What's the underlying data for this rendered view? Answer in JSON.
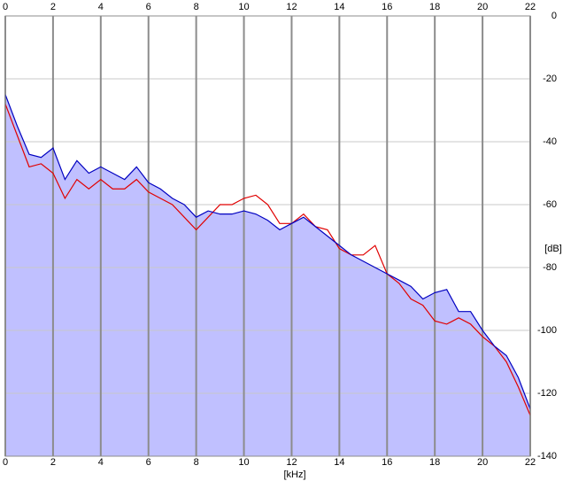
{
  "chart_data": {
    "type": "line",
    "x_label": "[kHz]",
    "y_label": "[dB]",
    "x": [
      0,
      0.5,
      1,
      1.5,
      2,
      2.5,
      3,
      3.5,
      4,
      4.5,
      5,
      5.5,
      6,
      6.5,
      7,
      7.5,
      8,
      8.5,
      9,
      9.5,
      10,
      10.5,
      11,
      11.5,
      12,
      12.5,
      13,
      13.5,
      14,
      14.5,
      15,
      15.5,
      16,
      16.5,
      17,
      17.5,
      18,
      18.5,
      19,
      19.5,
      20,
      20.5,
      21,
      21.5,
      22
    ],
    "series": [
      {
        "color": "#e00000",
        "values": [
          -28,
          -38,
          -48,
          -47,
          -50,
          -58,
          -52,
          -55,
          -52,
          -55,
          -55,
          -52,
          -56,
          -58,
          -60,
          -64,
          -68,
          -64,
          -60,
          -60,
          -58,
          -57,
          -60,
          -66,
          -66,
          -63,
          -67,
          -68,
          -74,
          -76,
          -76,
          -73,
          -82,
          -85,
          -90,
          -92,
          -97,
          -98,
          -96,
          -98,
          -102,
          -105,
          -110,
          -118,
          -127
        ]
      },
      {
        "color": "#0000c0",
        "values": [
          -25,
          -35,
          -44,
          -45,
          -42,
          -52,
          -46,
          -50,
          -48,
          -50,
          -52,
          -48,
          -53,
          -55,
          -58,
          -60,
          -64,
          -62,
          -63,
          -63,
          -62,
          -63,
          -65,
          -68,
          -66,
          -64,
          -67,
          -70,
          -73,
          -76,
          -78,
          -80,
          -82,
          -84,
          -86,
          -90,
          -88,
          -87,
          -94,
          -94,
          -100,
          -105,
          -108,
          -115,
          -125
        ]
      }
    ],
    "fill_color": "#c0c0ff",
    "xlim": [
      0,
      22
    ],
    "xticks": [
      0,
      2,
      4,
      6,
      8,
      10,
      12,
      14,
      16,
      18,
      20,
      22
    ],
    "ylim": [
      -140,
      0
    ],
    "yticks": [
      0,
      -20,
      -40,
      -60,
      -80,
      -100,
      -120,
      -140
    ],
    "grid": true
  }
}
